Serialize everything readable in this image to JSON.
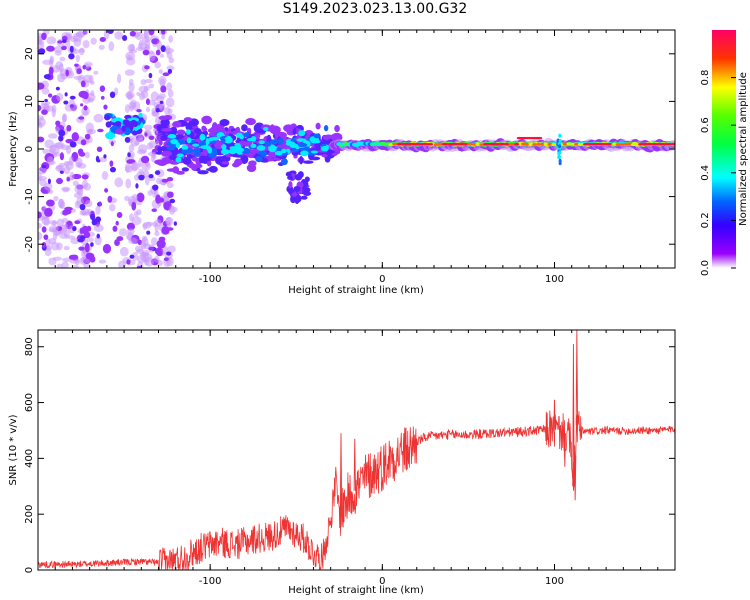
{
  "figure_title": "S149.2023.023.13.00.G32",
  "chart_data": [
    {
      "type": "heatmap",
      "xlabel": "Height of straight line (km)",
      "ylabel": "Frequency (Hz)",
      "xlim": [
        -200,
        170
      ],
      "ylim": [
        -25,
        25
      ],
      "xticks": [
        -100,
        0,
        100
      ],
      "yticks": [
        -20,
        -10,
        0,
        10,
        20
      ],
      "colorbar": {
        "label": "Normalized spectral amplitude",
        "range": [
          0,
          1
        ],
        "ticks": [
          0.0,
          0.2,
          0.4,
          0.6,
          0.8
        ],
        "colormap": "hsv-reversed"
      },
      "grid": false
    },
    {
      "type": "line",
      "xlabel": "Height of straight line (km)",
      "ylabel": "SNR (10 * v/v)",
      "xlim": [
        -200,
        170
      ],
      "ylim": [
        0,
        860
      ],
      "xticks": [
        -100,
        0,
        100
      ],
      "yticks": [
        0,
        200,
        400,
        600,
        800
      ],
      "line_color": "#ee3333",
      "grid": false,
      "x": [
        -200,
        -180,
        -160,
        -140,
        -125,
        -115,
        -105,
        -95,
        -85,
        -75,
        -65,
        -55,
        -45,
        -40,
        -35,
        -30,
        -27,
        -25,
        -20,
        -15,
        -10,
        -5,
        0,
        5,
        10,
        15,
        20,
        25,
        30,
        40,
        50,
        60,
        70,
        80,
        90,
        97,
        100,
        103,
        106,
        109,
        111,
        113,
        115,
        120,
        130,
        140,
        150,
        160,
        170
      ],
      "y": [
        20,
        20,
        25,
        30,
        25,
        45,
        80,
        100,
        90,
        110,
        120,
        150,
        110,
        60,
        40,
        180,
        320,
        200,
        260,
        290,
        330,
        350,
        370,
        400,
        420,
        430,
        460,
        475,
        480,
        485,
        485,
        488,
        492,
        495,
        500,
        505,
        500,
        495,
        490,
        470,
        300,
        520,
        500,
        495,
        500,
        498,
        500,
        500,
        505
      ],
      "spikes": [
        {
          "x": -24,
          "y": 490
        },
        {
          "x": -16,
          "y": 470
        },
        {
          "x": 100,
          "y": 610
        },
        {
          "x": 106,
          "y": 370
        },
        {
          "x": 111,
          "y": 810
        },
        {
          "x": 113,
          "y": 860
        },
        {
          "x": 112,
          "y": 250
        }
      ]
    }
  ]
}
